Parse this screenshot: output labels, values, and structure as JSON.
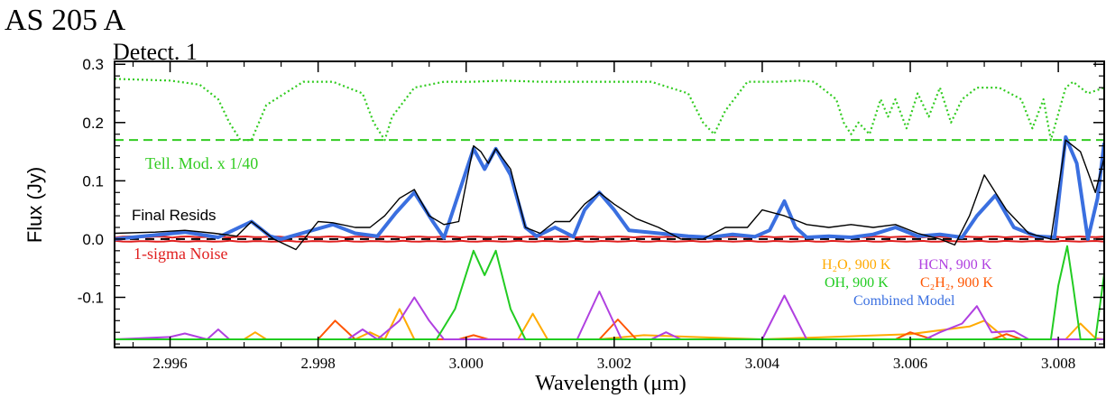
{
  "chart_data": {
    "type": "line",
    "title": "AS 205 A",
    "subtitle": "Detect. 1",
    "xlabel": "Wavelength (μm)",
    "ylabel": "Flux (Jy)",
    "xlim": [
      2.99525,
      3.00862
    ],
    "ylim": [
      -0.186,
      0.305
    ],
    "xticks": [
      2.996,
      2.998,
      3.0,
      3.002,
      3.004,
      3.006,
      3.008
    ],
    "xtick_labels": [
      "2.996",
      "2.998",
      "3.000",
      "3.002",
      "3.004",
      "3.006",
      "3.008"
    ],
    "yticks": [
      -0.1,
      0.0,
      0.1,
      0.2,
      0.3
    ],
    "ytick_labels": [
      "-0.1",
      "0.0",
      "0.1",
      "0.2",
      "0.3"
    ],
    "zero_line": 0.0,
    "telluric_threshold": 0.17,
    "annotations": {
      "telluric": "Tell. Mod. x 1/40",
      "resids": "Final Resids",
      "noise": "1-sigma Noise",
      "h2o": "H₂O, 900 K",
      "oh": "OH, 900 K",
      "hcn": "HCN, 900 K",
      "c2h2": "C₂H₂, 900 K",
      "combined": "Combined Model"
    },
    "colors": {
      "resids": "#000000",
      "combined": "#3a6fe0",
      "telluric": "#33cc22",
      "noise": "#e02020",
      "h2o": "#ffaa00",
      "oh": "#22cc22",
      "hcn": "#b040e0",
      "c2h2": "#ff5500"
    },
    "series": [
      {
        "name": "Final Resids",
        "color": "#000000",
        "x": [
          2.99525,
          2.9958,
          2.9962,
          2.9966,
          2.9969,
          2.9971,
          2.9974,
          2.9977,
          2.998,
          2.9982,
          2.9985,
          2.9987,
          2.9989,
          2.9991,
          2.9993,
          2.9995,
          2.9997,
          2.9999,
          3.0001,
          3.0002,
          3.0003,
          3.0004,
          3.0006,
          3.0008,
          3.001,
          3.0012,
          3.0014,
          3.0016,
          3.0018,
          3.002,
          3.0023,
          3.0026,
          3.0029,
          3.0032,
          3.0035,
          3.0038,
          3.004,
          3.0043,
          3.0046,
          3.0049,
          3.0052,
          3.0055,
          3.0058,
          3.0061,
          3.0064,
          3.0066,
          3.0068,
          3.007,
          3.0073,
          3.0076,
          3.0079,
          3.0081,
          3.0083,
          3.0085,
          3.00862
        ],
        "y": [
          0.01,
          0.012,
          0.015,
          0.01,
          0.005,
          0.03,
          0.0,
          -0.018,
          0.03,
          0.028,
          0.02,
          0.02,
          0.04,
          0.07,
          0.085,
          0.04,
          0.025,
          0.03,
          0.16,
          0.15,
          0.13,
          0.155,
          0.12,
          0.02,
          0.01,
          0.03,
          0.03,
          0.06,
          0.08,
          0.06,
          0.035,
          0.02,
          0.0,
          0.0,
          0.02,
          0.02,
          0.05,
          0.04,
          0.025,
          0.02,
          0.025,
          0.02,
          0.025,
          0.01,
          0.0,
          -0.01,
          0.04,
          0.11,
          0.05,
          0.01,
          0.0,
          0.17,
          0.15,
          0.08,
          0.14
        ]
      },
      {
        "name": "Combined Model",
        "color": "#3a6fe0",
        "x": [
          2.99525,
          2.9962,
          2.99665,
          2.9971,
          2.99735,
          2.9975,
          2.9982,
          2.9985,
          2.9988,
          2.99905,
          2.9993,
          2.99955,
          2.9997,
          3.0001,
          3.00025,
          3.0004,
          3.0006,
          3.0008,
          3.00095,
          3.0012,
          3.00145,
          3.0016,
          3.0018,
          3.002,
          3.0022,
          3.0026,
          3.003,
          3.0033,
          3.0036,
          3.0039,
          3.0041,
          3.0043,
          3.00445,
          3.0046,
          3.0049,
          3.0052,
          3.0055,
          3.0058,
          3.0061,
          3.0064,
          3.0067,
          3.0069,
          3.00715,
          3.0074,
          3.0077,
          3.00795,
          3.0081,
          3.00825,
          3.0084,
          3.00853,
          3.00862
        ],
        "y": [
          0.0,
          0.012,
          0.003,
          0.03,
          0.005,
          0.0,
          0.025,
          0.01,
          0.005,
          0.045,
          0.08,
          0.03,
          0.002,
          0.155,
          0.12,
          0.155,
          0.11,
          0.02,
          0.005,
          0.02,
          0.004,
          0.05,
          0.08,
          0.05,
          0.015,
          0.01,
          0.005,
          0.003,
          0.008,
          0.004,
          0.015,
          0.065,
          0.02,
          0.003,
          0.005,
          0.003,
          0.008,
          0.02,
          0.005,
          0.008,
          0.003,
          0.04,
          0.075,
          0.02,
          0.005,
          0.003,
          0.175,
          0.13,
          0.0,
          0.07,
          0.165
        ]
      },
      {
        "name": "Tell. Mod. x 1/40",
        "color": "#33cc22",
        "x": [
          2.99525,
          2.996,
          2.9964,
          2.99665,
          2.9968,
          2.99695,
          2.9971,
          2.9973,
          2.9978,
          2.9982,
          2.9986,
          2.99875,
          2.9989,
          2.999,
          2.9993,
          2.9997,
          3.0001,
          3.0005,
          3.001,
          3.0015,
          3.002,
          3.0025,
          3.003,
          3.0032,
          3.00335,
          3.0035,
          3.0038,
          3.0042,
          3.0045,
          3.0047,
          3.005,
          3.0051,
          3.0052,
          3.0053,
          3.00545,
          3.0056,
          3.0057,
          3.0058,
          3.00595,
          3.0061,
          3.00625,
          3.0064,
          3.00655,
          3.0067,
          3.0069,
          3.0072,
          3.0075,
          3.00765,
          3.0078,
          3.0079,
          3.0081,
          3.0082,
          3.0084,
          3.00862
        ],
        "y": [
          0.275,
          0.272,
          0.265,
          0.24,
          0.2,
          0.17,
          0.17,
          0.23,
          0.27,
          0.27,
          0.25,
          0.2,
          0.17,
          0.21,
          0.26,
          0.27,
          0.27,
          0.272,
          0.27,
          0.27,
          0.27,
          0.27,
          0.25,
          0.2,
          0.18,
          0.22,
          0.27,
          0.27,
          0.272,
          0.27,
          0.24,
          0.2,
          0.18,
          0.2,
          0.18,
          0.24,
          0.21,
          0.24,
          0.19,
          0.25,
          0.21,
          0.26,
          0.2,
          0.24,
          0.26,
          0.26,
          0.24,
          0.19,
          0.24,
          0.17,
          0.26,
          0.27,
          0.25,
          0.26
        ]
      },
      {
        "name": "H₂O, 900 K",
        "color": "#ffaa00",
        "x": [
          2.99525,
          2.997,
          2.99715,
          2.9973,
          2.9985,
          2.9987,
          2.9989,
          2.9991,
          2.9993,
          3.0007,
          3.0009,
          3.0011,
          3.0018,
          3.0024,
          3.004,
          3.006,
          3.0068,
          3.007,
          3.0073,
          3.0081,
          3.0083,
          3.0085,
          3.00862
        ],
        "y": [
          -0.172,
          -0.172,
          -0.16,
          -0.172,
          -0.172,
          -0.16,
          -0.172,
          -0.12,
          -0.172,
          -0.172,
          -0.128,
          -0.172,
          -0.172,
          -0.165,
          -0.172,
          -0.163,
          -0.15,
          -0.14,
          -0.172,
          -0.172,
          -0.145,
          -0.17,
          -0.172
        ]
      },
      {
        "name": "OH, 900 K",
        "color": "#22cc22",
        "x": [
          2.99525,
          2.9996,
          2.99985,
          3.0001,
          3.00025,
          3.0004,
          3.0006,
          3.0008,
          3.0079,
          3.008,
          3.00812,
          3.0082,
          3.0083,
          3.0085,
          3.00862
        ],
        "y": [
          -0.172,
          -0.172,
          -0.12,
          -0.02,
          -0.062,
          -0.02,
          -0.12,
          -0.172,
          -0.172,
          -0.08,
          -0.012,
          -0.08,
          -0.172,
          -0.172,
          -0.06
        ]
      },
      {
        "name": "HCN, 900 K",
        "color": "#b040e0",
        "x": [
          2.99525,
          2.996,
          2.9962,
          2.9965,
          2.99665,
          2.9968,
          2.9984,
          2.9986,
          2.9988,
          2.9991,
          2.9993,
          2.9995,
          2.9997,
          3.0015,
          3.0018,
          3.0021,
          3.0025,
          3.0027,
          3.0029,
          3.004,
          3.0043,
          3.0046,
          3.0062,
          3.0064,
          3.0067,
          3.0069,
          3.0071,
          3.0074,
          3.0076,
          3.00862
        ],
        "y": [
          -0.172,
          -0.168,
          -0.162,
          -0.172,
          -0.155,
          -0.172,
          -0.172,
          -0.155,
          -0.172,
          -0.14,
          -0.1,
          -0.14,
          -0.172,
          -0.172,
          -0.09,
          -0.172,
          -0.172,
          -0.16,
          -0.172,
          -0.172,
          -0.097,
          -0.172,
          -0.172,
          -0.16,
          -0.145,
          -0.115,
          -0.16,
          -0.158,
          -0.172,
          -0.172
        ]
      },
      {
        "name": "C₂H₂, 900 K",
        "color": "#ff5500",
        "x": [
          2.99525,
          2.998,
          2.99823,
          2.9985,
          2.9999,
          3.0001,
          3.0003,
          3.0018,
          3.00205,
          3.0023,
          3.004,
          3.0058,
          3.006,
          3.0063,
          3.0071,
          3.0073,
          3.0075,
          3.00862
        ],
        "y": [
          -0.172,
          -0.172,
          -0.14,
          -0.172,
          -0.172,
          -0.165,
          -0.172,
          -0.172,
          -0.138,
          -0.172,
          -0.172,
          -0.172,
          -0.16,
          -0.172,
          -0.172,
          -0.163,
          -0.172,
          -0.172
        ]
      }
    ],
    "noise_band": {
      "name": "1-sigma Noise",
      "color": "#e02020",
      "half_width": 0.0045
    }
  }
}
